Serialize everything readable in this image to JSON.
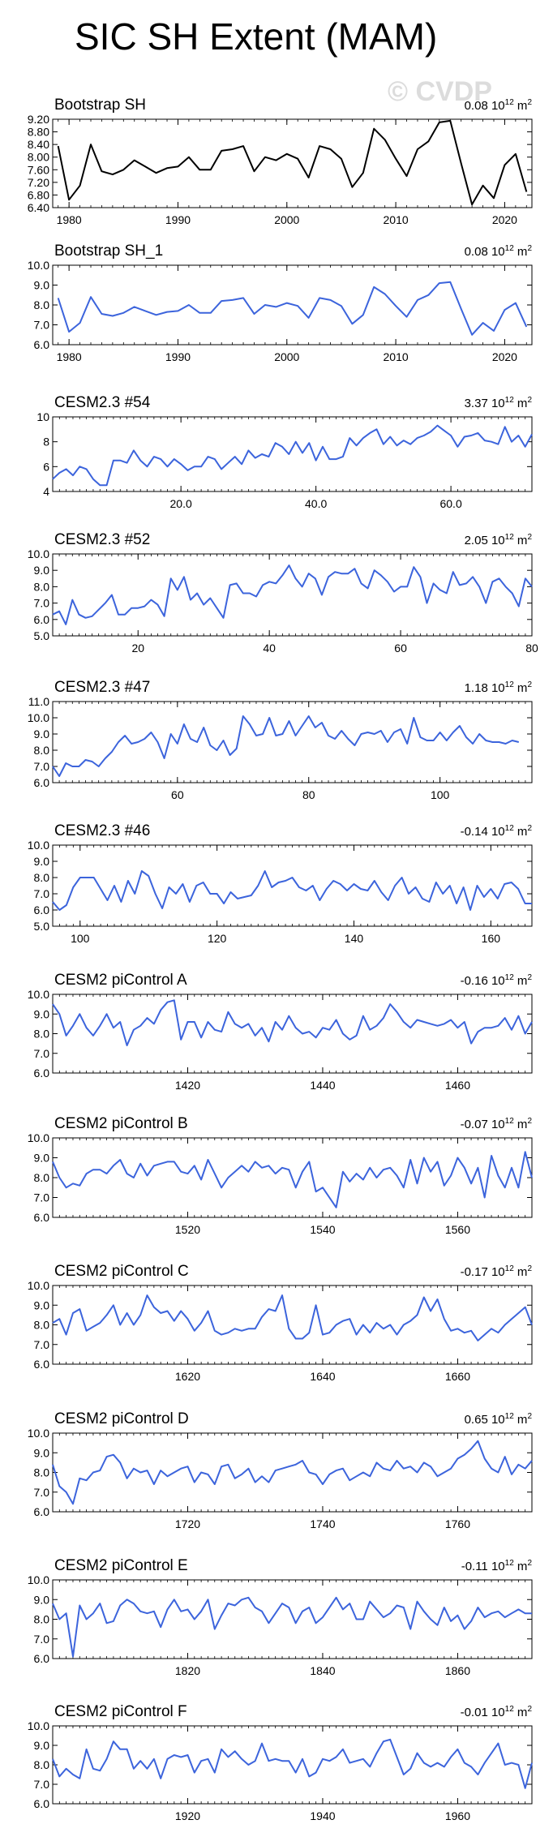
{
  "title": "SIC SH Extent (MAM)",
  "watermark": "© CVDP",
  "colors": {
    "obs": "#000000",
    "model": "#3c64dc"
  },
  "chart_data": [
    {
      "type": "line",
      "title": "Bootstrap SH",
      "trend": "0.08",
      "units": "10^12 m^2",
      "ylim": [
        6.4,
        9.2
      ],
      "yticks": [
        6.4,
        6.8,
        7.2,
        7.6,
        8.0,
        8.4,
        8.8,
        9.2
      ],
      "ytick_labels": [
        "6.40",
        "6.80",
        "7.20",
        "7.60",
        "8.00",
        "8.40",
        "8.80",
        "9.20"
      ],
      "xlim": [
        1978.5,
        2022.5
      ],
      "xticks": [
        1980,
        1990,
        2000,
        2010,
        2020
      ],
      "xtick_labels": [
        "1980",
        "1990",
        "2000",
        "2010",
        "2020"
      ],
      "color": "obs",
      "x_start": 1979,
      "values": [
        8.35,
        6.65,
        7.1,
        8.4,
        7.55,
        7.45,
        7.6,
        7.9,
        7.7,
        7.5,
        7.65,
        7.7,
        8.0,
        7.6,
        7.6,
        8.2,
        8.25,
        8.35,
        7.55,
        8.0,
        7.9,
        8.1,
        7.95,
        7.35,
        8.35,
        8.25,
        7.95,
        7.05,
        7.5,
        8.9,
        8.55,
        7.95,
        7.4,
        8.25,
        8.5,
        9.1,
        9.15,
        7.8,
        6.5,
        7.1,
        6.7,
        7.75,
        8.1,
        6.9
      ]
    },
    {
      "type": "line",
      "title": "Bootstrap SH_1",
      "trend": "0.08",
      "units": "10^12 m^2",
      "ylim": [
        6.0,
        10.0
      ],
      "yticks": [
        6.0,
        7.0,
        8.0,
        9.0,
        10.0
      ],
      "ytick_labels": [
        "6.0",
        "7.0",
        "8.0",
        "9.0",
        "10.0"
      ],
      "xlim": [
        1978.5,
        2022.5
      ],
      "xticks": [
        1980,
        1990,
        2000,
        2010,
        2020
      ],
      "xtick_labels": [
        "1980",
        "1990",
        "2000",
        "2010",
        "2020"
      ],
      "color": "model",
      "x_start": 1979,
      "values": [
        8.35,
        6.65,
        7.1,
        8.4,
        7.55,
        7.45,
        7.6,
        7.9,
        7.7,
        7.5,
        7.65,
        7.7,
        8.0,
        7.6,
        7.6,
        8.2,
        8.25,
        8.35,
        7.55,
        8.0,
        7.9,
        8.1,
        7.95,
        7.35,
        8.35,
        8.25,
        7.95,
        7.05,
        7.5,
        8.9,
        8.55,
        7.95,
        7.4,
        8.25,
        8.5,
        9.1,
        9.15,
        7.8,
        6.5,
        7.1,
        6.7,
        7.75,
        8.1,
        6.9
      ]
    },
    {
      "type": "line",
      "title": "CESM2.3 #54",
      "trend": "3.37",
      "units": "10^12 m^2",
      "ylim": [
        4,
        10
      ],
      "yticks": [
        4,
        6,
        8,
        10
      ],
      "ytick_labels": [
        "4",
        "6",
        "8",
        "10"
      ],
      "xlim": [
        1,
        72
      ],
      "xticks": [
        20,
        40,
        60
      ],
      "xtick_labels": [
        "20.0",
        "40.0",
        "60.0"
      ],
      "color": "model",
      "x_start": 1,
      "values": [
        5.0,
        5.5,
        5.8,
        5.3,
        6.0,
        5.8,
        5.0,
        4.5,
        4.5,
        6.5,
        6.5,
        6.3,
        7.3,
        6.5,
        6.0,
        6.8,
        6.6,
        6.0,
        6.6,
        6.2,
        5.7,
        6.0,
        6.0,
        6.8,
        6.6,
        5.8,
        6.3,
        6.8,
        6.2,
        7.3,
        6.7,
        7.0,
        6.8,
        7.9,
        7.6,
        7.0,
        8.0,
        7.1,
        7.9,
        6.5,
        7.6,
        6.6,
        6.6,
        6.8,
        8.3,
        7.7,
        8.3,
        8.7,
        9.0,
        7.8,
        8.4,
        7.7,
        8.1,
        7.8,
        8.3,
        8.5,
        8.8,
        9.3,
        8.9,
        8.5,
        7.6,
        8.4,
        8.5,
        8.7,
        8.1,
        8.0,
        7.8,
        9.2,
        8.0,
        8.5,
        7.6,
        8.6
      ]
    },
    {
      "type": "line",
      "title": "CESM2.3 #52",
      "trend": "2.05",
      "units": "10^12 m^2",
      "ylim": [
        5.0,
        10.0
      ],
      "yticks": [
        5.0,
        6.0,
        7.0,
        8.0,
        9.0,
        10.0
      ],
      "ytick_labels": [
        "5.0",
        "6.0",
        "7.0",
        "8.0",
        "9.0",
        "10.0"
      ],
      "xlim": [
        7,
        80
      ],
      "xticks": [
        20,
        40,
        60,
        80
      ],
      "xtick_labels": [
        "20",
        "40",
        "60",
        "80"
      ],
      "color": "model",
      "x_start": 7,
      "values": [
        6.3,
        6.5,
        5.7,
        7.2,
        6.3,
        6.1,
        6.2,
        6.6,
        7.0,
        7.5,
        6.3,
        6.3,
        6.7,
        6.7,
        6.8,
        7.2,
        6.9,
        6.2,
        8.5,
        7.8,
        8.6,
        7.2,
        7.6,
        6.9,
        7.3,
        6.7,
        6.1,
        8.1,
        8.2,
        7.6,
        7.6,
        7.4,
        8.1,
        8.3,
        8.2,
        8.7,
        9.3,
        8.5,
        8.0,
        8.8,
        8.5,
        7.5,
        8.6,
        8.9,
        8.8,
        8.8,
        9.1,
        8.2,
        7.9,
        9.0,
        8.7,
        8.3,
        7.7,
        8.0,
        8.0,
        9.2,
        8.6,
        7.0,
        8.2,
        7.8,
        7.6,
        8.9,
        8.1,
        8.2,
        8.6,
        8.0,
        7.0,
        8.3,
        8.5,
        8.0,
        7.6,
        6.8,
        8.5,
        8.0
      ]
    },
    {
      "type": "line",
      "title": "CESM2.3 #47",
      "trend": "1.18",
      "units": "10^12 m^2",
      "ylim": [
        6.0,
        11.0
      ],
      "yticks": [
        6.0,
        7.0,
        8.0,
        9.0,
        10.0,
        11.0
      ],
      "ytick_labels": [
        "6.0",
        "7.0",
        "8.0",
        "9.0",
        "10.0",
        "11.0"
      ],
      "xlim": [
        41,
        114
      ],
      "xticks": [
        60,
        80,
        100
      ],
      "xtick_labels": [
        "60",
        "80",
        "100"
      ],
      "color": "model",
      "x_start": 41,
      "values": [
        7.0,
        6.4,
        7.2,
        7.0,
        7.0,
        7.4,
        7.3,
        7.0,
        7.5,
        7.9,
        8.5,
        8.9,
        8.4,
        8.5,
        8.7,
        9.1,
        8.5,
        7.5,
        9.0,
        8.4,
        9.6,
        8.7,
        8.5,
        9.4,
        8.3,
        8.0,
        8.6,
        7.7,
        8.1,
        10.1,
        9.6,
        8.9,
        9.0,
        10.0,
        8.9,
        9.0,
        9.8,
        8.9,
        9.5,
        10.1,
        9.4,
        9.7,
        8.9,
        8.7,
        9.2,
        8.7,
        8.3,
        9.0,
        9.1,
        9.0,
        9.2,
        8.5,
        9.1,
        9.3,
        8.4,
        10.0,
        8.8,
        8.6,
        8.6,
        9.1,
        8.6,
        9.1,
        9.5,
        8.8,
        8.4,
        9.0,
        8.6,
        8.5,
        8.5,
        8.4,
        8.6,
        8.5
      ]
    },
    {
      "type": "line",
      "title": "CESM2.3 #46",
      "trend": "-0.14",
      "units": "10^12 m^2",
      "ylim": [
        5.0,
        10.0
      ],
      "yticks": [
        5.0,
        6.0,
        7.0,
        8.0,
        9.0,
        10.0
      ],
      "ytick_labels": [
        "5.0",
        "6.0",
        "7.0",
        "8.0",
        "9.0",
        "10.0"
      ],
      "xlim": [
        96,
        166
      ],
      "xticks": [
        100,
        120,
        140,
        160
      ],
      "xtick_labels": [
        "100",
        "120",
        "140",
        "160"
      ],
      "color": "model",
      "x_start": 96,
      "values": [
        6.5,
        6.0,
        6.3,
        7.4,
        8.0,
        8.0,
        8.0,
        7.3,
        6.6,
        7.5,
        6.5,
        7.8,
        7.0,
        8.4,
        8.1,
        7.0,
        6.1,
        7.4,
        7.0,
        7.6,
        6.5,
        7.5,
        7.7,
        7.0,
        7.0,
        6.4,
        7.1,
        6.7,
        6.8,
        6.9,
        7.5,
        8.4,
        7.4,
        7.7,
        7.8,
        8.0,
        7.4,
        7.2,
        7.5,
        6.6,
        7.3,
        7.8,
        7.6,
        7.2,
        7.6,
        7.3,
        7.2,
        7.8,
        7.1,
        6.6,
        7.5,
        8.0,
        7.0,
        7.4,
        6.7,
        6.5,
        7.7,
        7.0,
        7.5,
        6.4,
        7.4,
        6.0,
        7.5,
        6.8,
        7.3,
        6.7,
        7.6,
        7.7,
        7.3,
        6.4,
        6.4
      ]
    },
    {
      "type": "line",
      "title": "CESM2 piControl A",
      "trend": "-0.16",
      "units": "10^12 m^2",
      "ylim": [
        6.0,
        10.0
      ],
      "yticks": [
        6.0,
        7.0,
        8.0,
        9.0,
        10.0
      ],
      "ytick_labels": [
        "6.0",
        "7.0",
        "8.0",
        "9.0",
        "10.0"
      ],
      "xlim": [
        1400,
        1471
      ],
      "xticks": [
        1420,
        1440,
        1460
      ],
      "xtick_labels": [
        "1420",
        "1440",
        "1460"
      ],
      "color": "model",
      "x_start": 1400,
      "values": [
        9.5,
        9.0,
        7.9,
        8.4,
        9.0,
        8.3,
        7.9,
        8.4,
        9.0,
        8.3,
        8.6,
        7.4,
        8.2,
        8.4,
        8.8,
        8.5,
        9.2,
        9.6,
        9.7,
        7.7,
        8.6,
        8.6,
        7.8,
        8.6,
        8.2,
        8.1,
        9.1,
        8.5,
        8.3,
        8.5,
        7.9,
        8.3,
        7.6,
        8.6,
        8.2,
        8.9,
        8.3,
        8.0,
        8.1,
        7.8,
        8.3,
        8.2,
        8.7,
        8.0,
        7.7,
        7.9,
        8.9,
        8.2,
        8.4,
        8.8,
        9.5,
        9.1,
        8.6,
        8.3,
        8.7,
        8.6,
        8.5,
        8.4,
        8.5,
        8.7,
        8.3,
        8.6,
        7.5,
        8.1,
        8.3,
        8.3,
        8.4,
        8.8,
        8.2,
        8.9,
        8.0,
        8.6
      ]
    },
    {
      "type": "line",
      "title": "CESM2 piControl B",
      "trend": "-0.07",
      "units": "10^12 m^2",
      "ylim": [
        6.0,
        10.0
      ],
      "yticks": [
        6.0,
        7.0,
        8.0,
        9.0,
        10.0
      ],
      "ytick_labels": [
        "6.0",
        "7.0",
        "8.0",
        "9.0",
        "10.0"
      ],
      "xlim": [
        1500,
        1571
      ],
      "xticks": [
        1520,
        1540,
        1560
      ],
      "xtick_labels": [
        "1520",
        "1540",
        "1560"
      ],
      "color": "model",
      "x_start": 1500,
      "values": [
        8.8,
        8.0,
        7.5,
        7.7,
        7.6,
        8.2,
        8.4,
        8.4,
        8.2,
        8.6,
        8.9,
        8.2,
        8.0,
        8.7,
        8.1,
        8.6,
        8.7,
        8.8,
        8.8,
        8.3,
        8.2,
        8.6,
        7.9,
        8.9,
        8.2,
        7.5,
        8.0,
        8.3,
        8.6,
        8.3,
        8.8,
        8.5,
        8.6,
        8.2,
        8.5,
        8.4,
        7.5,
        8.3,
        8.8,
        7.3,
        7.5,
        7.0,
        6.5,
        8.3,
        7.8,
        8.2,
        7.9,
        8.5,
        8.0,
        8.4,
        8.5,
        8.1,
        7.5,
        8.9,
        7.7,
        9.0,
        8.3,
        8.8,
        7.6,
        8.1,
        9.0,
        8.5,
        7.7,
        8.5,
        7.0,
        9.1,
        8.1,
        7.5,
        8.5,
        7.5,
        9.3,
        8.0
      ]
    },
    {
      "type": "line",
      "title": "CESM2 piControl C",
      "trend": "-0.17",
      "units": "10^12 m^2",
      "ylim": [
        6.0,
        10.0
      ],
      "yticks": [
        6.0,
        7.0,
        8.0,
        9.0,
        10.0
      ],
      "ytick_labels": [
        "6.0",
        "7.0",
        "8.0",
        "9.0",
        "10.0"
      ],
      "xlim": [
        1600,
        1671
      ],
      "xticks": [
        1620,
        1640,
        1660
      ],
      "xtick_labels": [
        "1620",
        "1640",
        "1660"
      ],
      "color": "model",
      "x_start": 1600,
      "values": [
        8.1,
        8.3,
        7.5,
        8.6,
        8.8,
        7.7,
        7.9,
        8.1,
        8.5,
        9.0,
        8.0,
        8.6,
        8.0,
        8.5,
        9.5,
        8.9,
        8.6,
        8.7,
        8.2,
        8.7,
        8.3,
        7.7,
        8.1,
        8.7,
        7.7,
        7.5,
        7.6,
        7.8,
        7.7,
        7.8,
        7.8,
        8.4,
        8.8,
        8.7,
        9.5,
        7.8,
        7.3,
        7.3,
        7.6,
        9.0,
        7.5,
        7.6,
        8.0,
        8.2,
        8.3,
        7.5,
        8.0,
        7.6,
        8.1,
        7.8,
        8.0,
        7.5,
        8.0,
        8.2,
        8.5,
        9.4,
        8.7,
        9.3,
        8.3,
        7.7,
        7.8,
        7.6,
        7.7,
        7.2,
        7.5,
        7.8,
        7.6,
        8.0,
        8.3,
        8.6,
        8.9,
        8.0
      ]
    },
    {
      "type": "line",
      "title": "CESM2 piControl D",
      "trend": "0.65",
      "units": "10^12 m^2",
      "ylim": [
        6.0,
        10.0
      ],
      "yticks": [
        6.0,
        7.0,
        8.0,
        9.0,
        10.0
      ],
      "ytick_labels": [
        "6.0",
        "7.0",
        "8.0",
        "9.0",
        "10.0"
      ],
      "xlim": [
        1700,
        1771
      ],
      "xticks": [
        1720,
        1740,
        1760
      ],
      "xtick_labels": [
        "1720",
        "1740",
        "1760"
      ],
      "color": "model",
      "x_start": 1700,
      "values": [
        8.4,
        7.3,
        7.0,
        6.4,
        7.7,
        7.6,
        8.0,
        8.1,
        8.8,
        8.9,
        8.5,
        7.7,
        8.2,
        8.0,
        8.1,
        7.4,
        8.1,
        7.8,
        8.0,
        8.2,
        8.3,
        7.5,
        8.0,
        7.9,
        7.4,
        8.3,
        8.4,
        7.7,
        7.9,
        8.2,
        7.5,
        7.8,
        7.5,
        8.1,
        8.2,
        8.3,
        8.4,
        8.6,
        8.0,
        7.9,
        7.4,
        7.9,
        8.1,
        8.2,
        7.6,
        7.8,
        8.0,
        7.8,
        8.5,
        8.2,
        8.1,
        8.6,
        8.2,
        8.3,
        8.0,
        8.5,
        8.3,
        7.8,
        8.0,
        8.2,
        8.7,
        8.9,
        9.2,
        9.6,
        8.7,
        8.2,
        8.0,
        8.8,
        7.9,
        8.4,
        8.2,
        8.6
      ]
    },
    {
      "type": "line",
      "title": "CESM2 piControl E",
      "trend": "-0.11",
      "units": "10^12 m^2",
      "ylim": [
        6.0,
        10.0
      ],
      "yticks": [
        6.0,
        7.0,
        8.0,
        9.0,
        10.0
      ],
      "ytick_labels": [
        "6.0",
        "7.0",
        "8.0",
        "9.0",
        "10.0"
      ],
      "xlim": [
        1800,
        1871
      ],
      "xticks": [
        1820,
        1840,
        1860
      ],
      "xtick_labels": [
        "1820",
        "1840",
        "1860"
      ],
      "color": "model",
      "x_start": 1800,
      "values": [
        8.8,
        8.0,
        8.3,
        6.1,
        8.7,
        8.0,
        8.3,
        8.8,
        7.8,
        7.9,
        8.7,
        9.0,
        8.8,
        8.4,
        8.3,
        8.4,
        7.6,
        8.5,
        9.0,
        8.4,
        8.5,
        8.0,
        8.4,
        9.0,
        7.5,
        8.2,
        8.8,
        8.7,
        9.0,
        9.1,
        8.6,
        8.4,
        7.8,
        8.3,
        8.8,
        8.6,
        7.8,
        8.4,
        8.6,
        7.8,
        8.1,
        8.6,
        9.1,
        8.5,
        8.8,
        8.0,
        8.0,
        8.9,
        8.5,
        8.1,
        8.3,
        8.7,
        8.6,
        7.5,
        8.9,
        8.4,
        8.0,
        7.7,
        8.6,
        7.9,
        8.2,
        7.5,
        7.9,
        8.6,
        8.1,
        8.3,
        8.4,
        8.1,
        8.3,
        8.5,
        8.3,
        8.3
      ]
    },
    {
      "type": "line",
      "title": "CESM2 piControl F",
      "trend": "-0.01",
      "units": "10^12 m^2",
      "ylim": [
        6.0,
        10.0
      ],
      "yticks": [
        6.0,
        7.0,
        8.0,
        9.0,
        10.0
      ],
      "ytick_labels": [
        "6.0",
        "7.0",
        "8.0",
        "9.0",
        "10.0"
      ],
      "xlim": [
        1900,
        1971
      ],
      "xticks": [
        1920,
        1940,
        1960
      ],
      "xtick_labels": [
        "1920",
        "1940",
        "1960"
      ],
      "color": "model",
      "x_start": 1900,
      "values": [
        8.3,
        7.4,
        7.8,
        7.5,
        7.3,
        8.8,
        7.8,
        7.7,
        8.3,
        9.2,
        8.8,
        8.8,
        7.8,
        8.2,
        7.8,
        8.3,
        7.3,
        8.3,
        8.5,
        8.4,
        8.5,
        7.6,
        8.2,
        8.3,
        7.6,
        8.8,
        8.4,
        8.7,
        8.3,
        8.0,
        8.2,
        9.1,
        8.2,
        8.3,
        8.2,
        8.2,
        7.6,
        8.3,
        7.4,
        7.6,
        8.3,
        8.2,
        8.4,
        8.8,
        8.1,
        8.2,
        8.3,
        7.9,
        8.6,
        9.2,
        9.3,
        8.4,
        7.5,
        7.8,
        8.6,
        8.1,
        7.9,
        8.1,
        7.9,
        8.4,
        8.8,
        8.1,
        7.9,
        7.5,
        8.1,
        8.6,
        9.1,
        8.0,
        8.1,
        8.0,
        6.8,
        8.1
      ]
    }
  ]
}
